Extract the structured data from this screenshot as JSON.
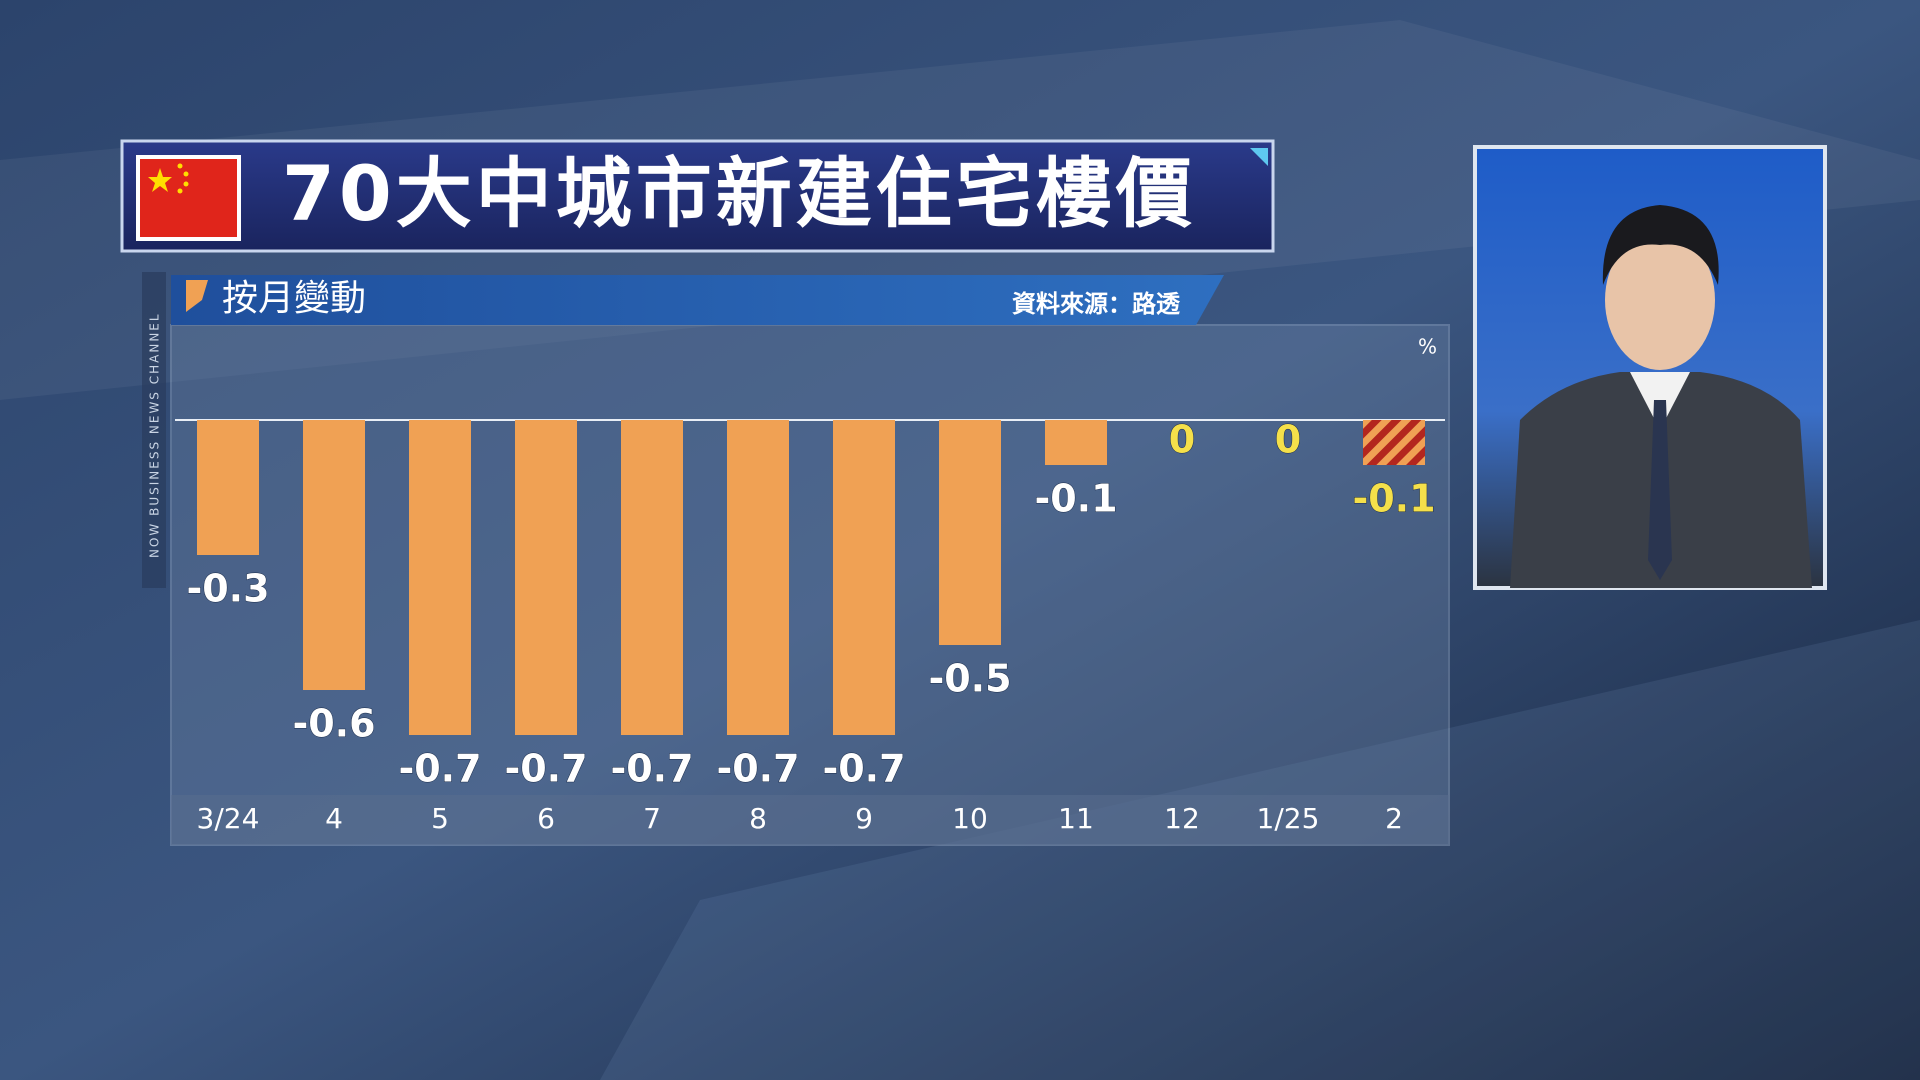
{
  "chart_data": {
    "type": "bar",
    "title": "70大中城市新建住宅樓價",
    "subtitle": "按月變動",
    "source": "資料來源：路透",
    "unit": "%",
    "channel": "NOW BUSINESS NEWS CHANNEL",
    "categories": [
      "3/24",
      "4",
      "5",
      "6",
      "7",
      "8",
      "9",
      "10",
      "11",
      "12",
      "1/25",
      "2"
    ],
    "values": [
      -0.3,
      -0.6,
      -0.7,
      -0.7,
      -0.7,
      -0.7,
      -0.7,
      -0.5,
      -0.1,
      0,
      0,
      -0.1
    ],
    "color": "#f0a154",
    "colors": [
      "#f0a154",
      "#f0a154",
      "#f0a154",
      "#f0a154",
      "#f0a154",
      "#f0a154",
      "#f0a154",
      "#f0a154",
      "#f0a154",
      "#f0a154",
      "#f0a154",
      "#b3261e"
    ],
    "hatched": [
      11
    ],
    "label_colors": [
      "#ffffff",
      "#ffffff",
      "#ffffff",
      "#ffffff",
      "#ffffff",
      "#ffffff",
      "#ffffff",
      "#ffffff",
      "#ffffff",
      "#f5e04a",
      "#f5e04a",
      "#f5e04a"
    ],
    "ylim": [
      -0.8,
      0
    ]
  }
}
